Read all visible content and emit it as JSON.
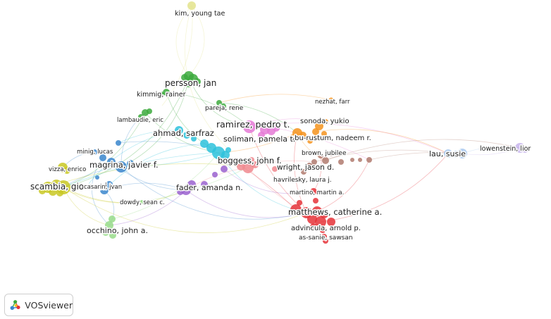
{
  "tool": {
    "name": "VOSviewer"
  },
  "cluster_colors": {
    "red": "#e53238",
    "green": "#3daa3d",
    "blue": "#3a86cc",
    "yellow": "#c9c823",
    "purple": "#9a62cf",
    "cyan": "#2ec2dc",
    "orange": "#f5931d",
    "brown": "#b07a6e",
    "pink": "#e57ad6",
    "lightblue": "#a8c8ee",
    "lightgreen": "#98dc8a",
    "rose": "#f08a8f",
    "khaki": "#e3e38c",
    "lavender": "#c7b5ec"
  },
  "labels": [
    {
      "id": "kim",
      "text": "kim, young tae",
      "cluster": "khaki"
    },
    {
      "id": "persson",
      "text": "persson, jan",
      "cluster": "green"
    },
    {
      "id": "kimmig",
      "text": "kimmig, rainer",
      "cluster": "green"
    },
    {
      "id": "pareja",
      "text": "pareja, rene",
      "cluster": "green"
    },
    {
      "id": "nezhat",
      "text": "nezhat, farr",
      "cluster": "orange"
    },
    {
      "id": "lambaudie",
      "text": "lambaudie, eric",
      "cluster": "green"
    },
    {
      "id": "ramirez",
      "text": "ramirez, pedro t.",
      "cluster": "pink"
    },
    {
      "id": "sonoda",
      "text": "sonoda, yukio",
      "cluster": "orange"
    },
    {
      "id": "ahmad",
      "text": "ahmad, sarfraz",
      "cluster": "cyan"
    },
    {
      "id": "abu",
      "text": "abu-rustum, nadeem r.",
      "cluster": "orange"
    },
    {
      "id": "soliman",
      "text": "soliman, pamela t.",
      "cluster": "pink"
    },
    {
      "id": "minig",
      "text": "minig, lucas",
      "cluster": "blue"
    },
    {
      "id": "brown",
      "text": "brown, jubilee",
      "cluster": "brown"
    },
    {
      "id": "lau",
      "text": "lau, susie",
      "cluster": "lightblue"
    },
    {
      "id": "lowenstein",
      "text": "lowenstein, lior",
      "cluster": "lavender"
    },
    {
      "id": "magrina",
      "text": "magrina, javier f.",
      "cluster": "blue"
    },
    {
      "id": "boggess",
      "text": "boggess, john f.",
      "cluster": "cyan"
    },
    {
      "id": "vizza",
      "text": "vizza, enrico",
      "cluster": "yellow"
    },
    {
      "id": "wright",
      "text": "wright, jason d.",
      "cluster": "brown"
    },
    {
      "id": "havrilesky",
      "text": "havrilesky, laura j.",
      "cluster": "brown"
    },
    {
      "id": "scambia",
      "text": "scambia, giovanni",
      "cluster": "yellow"
    },
    {
      "id": "casarin",
      "text": "casarin, jvan",
      "cluster": "blue"
    },
    {
      "id": "fader",
      "text": "fader, amanda n.",
      "cluster": "purple"
    },
    {
      "id": "martino",
      "text": "martino, martin a.",
      "cluster": "red"
    },
    {
      "id": "dowdy",
      "text": "dowdy, sean c.",
      "cluster": "lightgreen"
    },
    {
      "id": "matthews",
      "text": "matthews, catherine a.",
      "cluster": "red"
    },
    {
      "id": "occhino",
      "text": "occhino, john a.",
      "cluster": "lightgreen"
    },
    {
      "id": "advincula",
      "text": "advincula, arnold p.",
      "cluster": "red"
    },
    {
      "id": "assanie",
      "text": "as-sanie, sawsan",
      "cluster": "red"
    }
  ]
}
